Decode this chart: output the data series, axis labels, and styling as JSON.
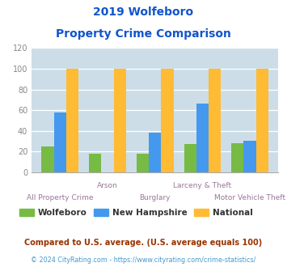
{
  "title_line1": "2019 Wolfeboro",
  "title_line2": "Property Crime Comparison",
  "categories": [
    "All Property Crime",
    "Arson",
    "Burglary",
    "Larceny & Theft",
    "Motor Vehicle Theft"
  ],
  "wolfeboro": [
    25,
    18,
    18,
    27,
    28
  ],
  "new_hampshire": [
    58,
    0,
    38,
    66,
    30
  ],
  "national": [
    100,
    100,
    100,
    100,
    100
  ],
  "wolfeboro_color": "#77bb44",
  "nh_color": "#4499ee",
  "national_color": "#ffbb33",
  "background_color": "#ccdde8",
  "ylim": [
    0,
    120
  ],
  "yticks": [
    0,
    20,
    40,
    60,
    80,
    100,
    120
  ],
  "legend_labels": [
    "Wolfeboro",
    "New Hampshire",
    "National"
  ],
  "footnote1": "Compared to U.S. average. (U.S. average equals 100)",
  "footnote2": "© 2024 CityRating.com - https://www.cityrating.com/crime-statistics/",
  "title_color": "#1155cc",
  "footnote1_color": "#993300",
  "footnote2_color": "#4499cc",
  "xlabel_color": "#997799",
  "tick_color": "#888888",
  "legend_text_color": "#333333"
}
